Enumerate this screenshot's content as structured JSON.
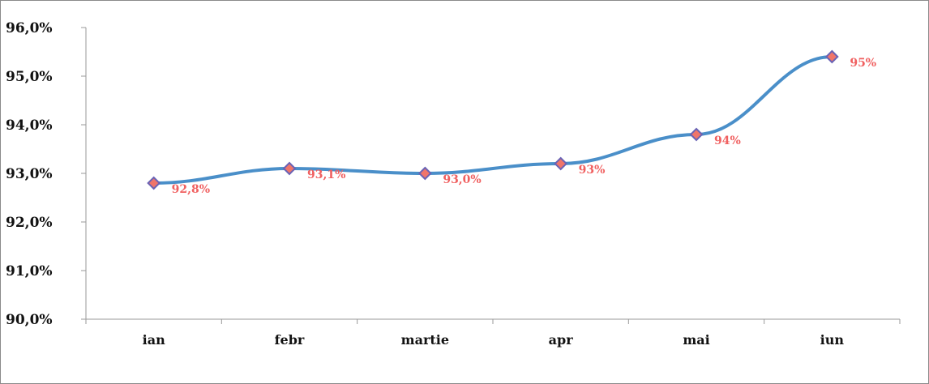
{
  "chart_data": {
    "type": "line",
    "categories": [
      "ian",
      "febr",
      "martie",
      "apr",
      "mai",
      "iun"
    ],
    "series": [
      {
        "values": [
          92.8,
          93.1,
          93.0,
          93.2,
          93.8,
          95.4
        ],
        "data_labels": [
          "92,8%",
          "93,1%",
          "93,0%",
          "93%",
          "94%",
          "95%"
        ],
        "line_color": "#4a8fc9",
        "marker_fill": "#f0756a",
        "marker_stroke": "#6a63b5",
        "label_color": "#f06060"
      }
    ],
    "yticks": [
      "90,0%",
      "91,0%",
      "92,0%",
      "93,0%",
      "94,0%",
      "95,0%",
      "96,0%"
    ],
    "ylim": [
      90,
      96
    ],
    "ytick_step": 1,
    "grid": false,
    "legend": "none"
  }
}
